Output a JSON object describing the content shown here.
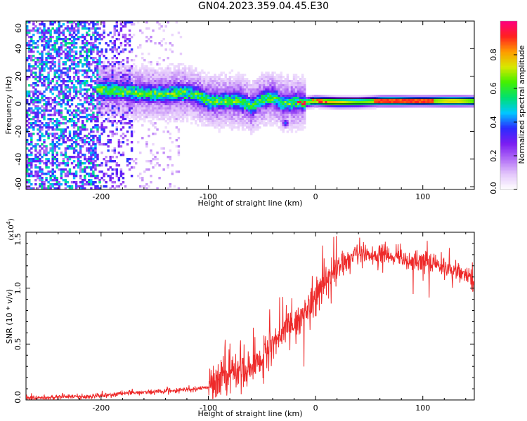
{
  "title": "GN04.2023.359.04.45.E30",
  "colors": {
    "colormap": [
      "#ffffff",
      "#e3c6fb",
      "#b06cf6",
      "#7a1cf2",
      "#2a2cff",
      "#00c8ff",
      "#00e070",
      "#44f000",
      "#d8e800",
      "#ff9a00",
      "#ff2020",
      "#ff0080"
    ],
    "snr_line": "#ee2a2a",
    "frame": "#000000"
  },
  "chart_data": [
    {
      "type": "heatmap",
      "title": "GN04.2023.359.04.45.E30",
      "xlabel": "Height of straight line (km)",
      "ylabel": "Frequency (Hz)",
      "xlim": [
        -270,
        148
      ],
      "ylim": [
        -62,
        60
      ],
      "x_ticks": [
        "-200",
        "-100",
        "0",
        "100"
      ],
      "y_ticks": [
        "-60",
        "-40",
        "-20",
        "0",
        "20",
        "40",
        "60"
      ],
      "x_tick_values": [
        -200,
        -100,
        0,
        100
      ],
      "y_tick_values": [
        -60,
        -40,
        -20,
        0,
        20,
        40,
        60
      ],
      "colorbar": {
        "label": "Normalized spectral amplitude",
        "range": [
          0,
          1
        ],
        "ticks": [
          "0.0",
          "0.2",
          "0.4",
          "0.6",
          "0.8"
        ],
        "tick_values": [
          0.0,
          0.2,
          0.4,
          0.6,
          0.8
        ]
      },
      "ridge": {
        "x": [
          -200,
          -190,
          -180,
          -170,
          -160,
          -150,
          -140,
          -130,
          -120,
          -110,
          -100,
          -90,
          -80,
          -70,
          -60,
          -50,
          -40,
          -30,
          -20,
          -10,
          0,
          20,
          40,
          60,
          80,
          100,
          120,
          148
        ],
        "frequency": [
          10,
          10,
          9,
          8,
          8,
          7,
          7,
          8,
          8,
          6,
          2,
          2,
          2,
          2,
          -2,
          3,
          5,
          0,
          1,
          1,
          2,
          1,
          1,
          2,
          2,
          2,
          2,
          2
        ]
      }
    },
    {
      "type": "line",
      "xlabel": "Height of straight line (km)",
      "ylabel": "SNR (10 * v/v)",
      "y_multiplier": "(x10",
      "y_multiplier_exponent": "4",
      "y_multiplier_close": ")",
      "xlim": [
        -270,
        148
      ],
      "ylim": [
        0,
        1.5
      ],
      "x_ticks": [
        "-200",
        "-100",
        "0",
        "100"
      ],
      "y_ticks": [
        "0.0",
        "0.5",
        "1.0",
        "1.5"
      ],
      "x_tick_values": [
        -200,
        -100,
        0,
        100
      ],
      "y_tick_values": [
        0.0,
        0.5,
        1.0,
        1.5
      ],
      "series": [
        {
          "x": [
            -270,
            -250,
            -230,
            -210,
            -200,
            -180,
            -160,
            -140,
            -120,
            -110,
            -100,
            -90,
            -80,
            -70,
            -60,
            -50,
            -40,
            -30,
            -20,
            -10,
            0,
            10,
            20,
            30,
            40,
            60,
            80,
            100,
            120,
            140,
            148
          ],
          "values": [
            0.02,
            0.02,
            0.03,
            0.03,
            0.04,
            0.06,
            0.07,
            0.08,
            0.09,
            0.1,
            0.12,
            0.18,
            0.22,
            0.26,
            0.3,
            0.38,
            0.5,
            0.62,
            0.68,
            0.78,
            0.92,
            1.05,
            1.18,
            1.25,
            1.3,
            1.3,
            1.27,
            1.23,
            1.18,
            1.12,
            1.08
          ]
        }
      ]
    }
  ]
}
